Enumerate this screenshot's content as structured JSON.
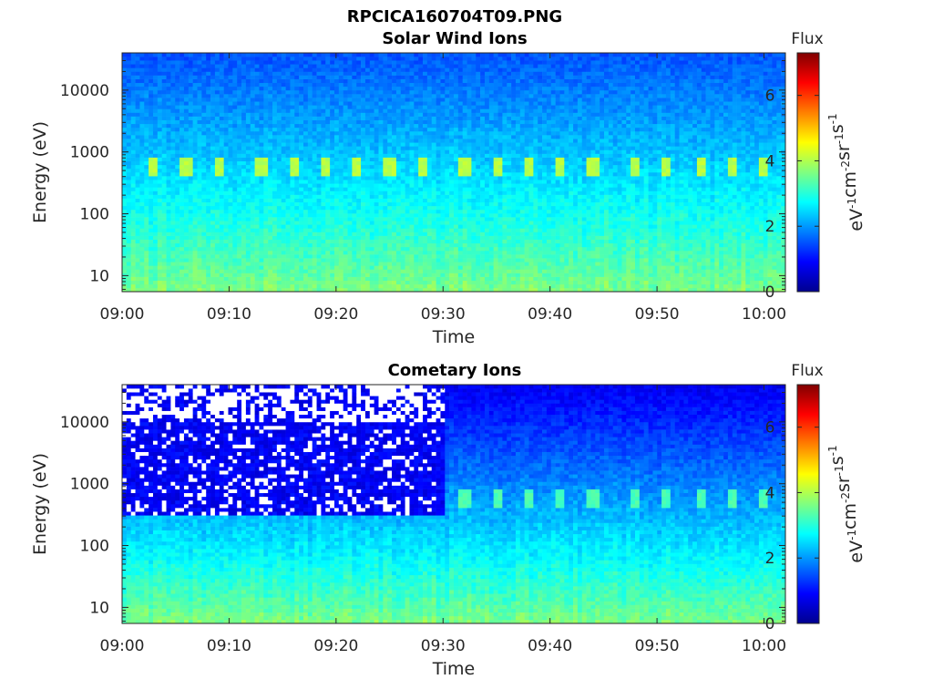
{
  "figure": {
    "title": "RPCICA160704T09.PNG"
  },
  "chart_data": [
    {
      "type": "heatmap",
      "title": "Solar Wind Ions",
      "xlabel": "Time",
      "ylabel": "Energy (eV)",
      "x_ticks": [
        "09:00",
        "09:10",
        "09:20",
        "09:30",
        "09:40",
        "09:50",
        "10:00"
      ],
      "x_range": [
        "09:00",
        "10:02"
      ],
      "y_scale": "log",
      "y_ticks": [
        10,
        100,
        1000,
        10000
      ],
      "y_tick_labels": [
        "10",
        "100",
        "1000",
        "10000"
      ],
      "y_range": [
        5.5,
        40000
      ],
      "colorbar": {
        "title": "Flux",
        "label": "eV-1cm-2sr-1s-1",
        "ticks": [
          0,
          2,
          4,
          6
        ],
        "range": [
          0,
          7.3
        ],
        "colormap": "jet"
      },
      "features": {
        "background_flux_high_energy": 1.5,
        "flux_100eV": 2.8,
        "flux_10eV": 3.5,
        "periodic_peak_energy_eV": 600,
        "periodic_peak_flux": 3.9,
        "periodic_peak_times": [
          "09:03",
          "09:06",
          "09:09",
          "09:13",
          "09:16",
          "09:19",
          "09:22",
          "09:25",
          "09:28",
          "09:32",
          "09:35",
          "09:38",
          "09:41",
          "09:44",
          "09:48",
          "09:51",
          "09:54",
          "09:57",
          "10:00"
        ]
      }
    },
    {
      "type": "heatmap",
      "title": "Cometary Ions",
      "xlabel": "Time",
      "ylabel": "Energy (eV)",
      "x_ticks": [
        "09:00",
        "09:10",
        "09:20",
        "09:30",
        "09:40",
        "09:50",
        "10:00"
      ],
      "x_range": [
        "09:00",
        "10:02"
      ],
      "y_scale": "log",
      "y_ticks": [
        10,
        100,
        1000,
        10000
      ],
      "y_tick_labels": [
        "10",
        "100",
        "1000",
        "10000"
      ],
      "y_range": [
        5.5,
        40000
      ],
      "colorbar": {
        "title": "Flux",
        "label": "eV-1cm-2sr-1s-1",
        "ticks": [
          0,
          2,
          4,
          6
        ],
        "range": [
          0,
          7.3
        ],
        "colormap": "jet"
      },
      "features": {
        "missing_data_region": {
          "time_end": "09:30",
          "energy_min_eV": 300
        },
        "background_flux_high_energy": 0.8,
        "flux_100eV": 2.6,
        "flux_10eV": 3.5,
        "periodic_peak_energy_eV": 600,
        "periodic_peak_flux": 3.1,
        "periodic_peak_times": [
          "09:03",
          "09:06",
          "09:09",
          "09:13",
          "09:16",
          "09:19",
          "09:22",
          "09:25",
          "09:28",
          "09:32",
          "09:35",
          "09:38",
          "09:41",
          "09:44",
          "09:48",
          "09:51",
          "09:54",
          "09:57",
          "10:00"
        ]
      }
    }
  ]
}
